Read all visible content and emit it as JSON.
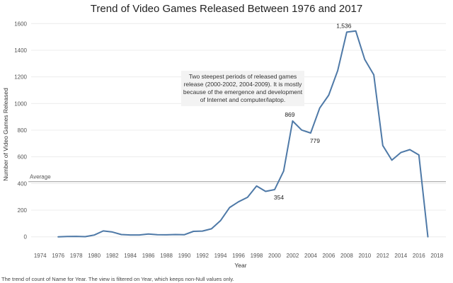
{
  "chart_data": {
    "type": "line",
    "title": "Trend of Video Games Released Between 1976 and 2017",
    "xlabel": "Year",
    "ylabel": "Number of Video Games Released",
    "xlim": [
      1973,
      2019
    ],
    "ylim": [
      -60,
      1660
    ],
    "x_ticks": [
      1974,
      1976,
      1978,
      1980,
      1982,
      1984,
      1986,
      1988,
      1990,
      1992,
      1994,
      1996,
      1998,
      2000,
      2002,
      2004,
      2006,
      2008,
      2010,
      2012,
      2014,
      2016,
      2018
    ],
    "y_ticks": [
      0,
      200,
      400,
      600,
      800,
      1000,
      1200,
      1400,
      1600
    ],
    "y_tick_labels": [
      "0",
      "200",
      "400",
      "600",
      "800",
      "1000",
      "1200",
      "1400",
      "1600"
    ],
    "grid": "horizontal",
    "color": "#4e79a7",
    "series": [
      {
        "name": "Count of Name",
        "x": [
          1976,
          1977,
          1978,
          1979,
          1980,
          1981,
          1982,
          1983,
          1984,
          1985,
          1986,
          1987,
          1988,
          1989,
          1990,
          1991,
          1992,
          1993,
          1994,
          1995,
          1996,
          1997,
          1998,
          1999,
          2000,
          2001,
          2002,
          2003,
          2004,
          2005,
          2006,
          2007,
          2008,
          2009,
          2010,
          2011,
          2012,
          2013,
          2014,
          2015,
          2016,
          2017
        ],
        "values": [
          0,
          2,
          3,
          1,
          13,
          44,
          36,
          17,
          14,
          14,
          21,
          16,
          15,
          17,
          16,
          41,
          43,
          60,
          121,
          219,
          263,
          296,
          381,
          341,
          354,
          493,
          869,
          801,
          779,
          966,
          1063,
          1247,
          1536,
          1545,
          1331,
          1215,
          685,
          575,
          632,
          654,
          614,
          0
        ]
      }
    ],
    "reference_line": {
      "label": "Average",
      "value": 414
    },
    "data_labels": [
      {
        "x": 2008,
        "value": 1536,
        "text": "1,536",
        "position": "above"
      },
      {
        "x": 2002,
        "value": 869,
        "text": "869",
        "position": "above"
      },
      {
        "x": 2004,
        "value": 779,
        "text": "779",
        "position": "below"
      },
      {
        "x": 2000,
        "value": 354,
        "text": "354",
        "position": "below"
      }
    ],
    "annotation": "Two steepest periods of released games release (2000-2002, 2004-2009). It is mostly because of the emergence and development of Internet and computer/laptop.",
    "caption": "The trend of count of Name for Year.  The view is filtered on Year, which keeps non-Null values only."
  }
}
